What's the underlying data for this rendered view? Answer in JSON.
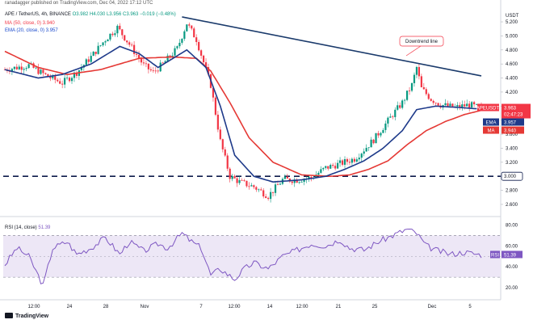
{
  "header": {
    "credit": "ranadagger published on TradingView.com, Dec 04, 2022 17:12 UTC",
    "symbol_line": "APE / TetherUS, 4h, BINANCE",
    "ohlc": "O3.982  H4.030  L3.956  C3.963  −0.019 (−0.48%)",
    "ma_line": "MA (50, close, 0)  3.940",
    "ema_line": "EMA (20, close, 0)  3.957",
    "rsi_label": "RSI (14, close)",
    "rsi_value": "51.39",
    "logo_text": "TradingView"
  },
  "colors": {
    "up": "#089981",
    "down": "#f23645",
    "ema": "#1e3a8a",
    "ma": "#e53935",
    "trendline": "#1a3a6b",
    "rsi": "#7e57c2",
    "rsi_band": "#ede7f6"
  },
  "chart_data": {
    "type": "candlestick",
    "title": "APE / TetherUS, 4h, BINANCE",
    "price_axis": {
      "label": "USDT",
      "ticks": [
        "5.200",
        "5.000",
        "4.800",
        "4.600",
        "4.400",
        "4.200",
        "4.000",
        "3.800",
        "3.600",
        "3.400",
        "3.200",
        "3.000",
        "2.800",
        "2.600"
      ],
      "range": [
        2.45,
        5.35
      ]
    },
    "time_ticks": [
      "12:00",
      "24",
      "28",
      "Nov",
      "7",
      "12:00",
      "14",
      "12:00",
      "21",
      "25",
      "Dec",
      "5"
    ],
    "price_path": [
      [
        0,
        4.52
      ],
      [
        10,
        4.58
      ],
      [
        18,
        4.42
      ],
      [
        24,
        4.33
      ],
      [
        30,
        4.48
      ],
      [
        36,
        4.7
      ],
      [
        42,
        4.95
      ],
      [
        47,
        5.12
      ],
      [
        52,
        4.88
      ],
      [
        58,
        4.58
      ],
      [
        62,
        4.48
      ],
      [
        66,
        4.6
      ],
      [
        72,
        4.82
      ],
      [
        76,
        5.18
      ],
      [
        80,
        4.95
      ],
      [
        86,
        4.3
      ],
      [
        90,
        3.5
      ],
      [
        94,
        3.0
      ],
      [
        98,
        2.92
      ],
      [
        104,
        2.85
      ],
      [
        110,
        2.72
      ],
      [
        116,
        2.95
      ],
      [
        122,
        2.95
      ],
      [
        128,
        2.98
      ],
      [
        134,
        3.12
      ],
      [
        140,
        3.18
      ],
      [
        146,
        3.25
      ],
      [
        150,
        3.38
      ],
      [
        154,
        3.52
      ],
      [
        158,
        3.7
      ],
      [
        162,
        3.88
      ],
      [
        166,
        4.05
      ],
      [
        170,
        4.3
      ],
      [
        172,
        4.55
      ],
      [
        174,
        4.25
      ],
      [
        178,
        4.1
      ],
      [
        182,
        4.02
      ],
      [
        188,
        3.98
      ],
      [
        194,
        4.02
      ],
      [
        199,
        3.963
      ]
    ],
    "series": [
      {
        "name": "EMA (20, close, 0)",
        "last": 3.957,
        "tag": "EMA",
        "tag_value": "3.957",
        "path": [
          [
            0,
            4.52
          ],
          [
            14,
            4.4
          ],
          [
            24,
            4.45
          ],
          [
            36,
            4.6
          ],
          [
            48,
            4.85
          ],
          [
            56,
            4.75
          ],
          [
            64,
            4.55
          ],
          [
            76,
            4.8
          ],
          [
            84,
            4.55
          ],
          [
            90,
            4.0
          ],
          [
            96,
            3.3
          ],
          [
            104,
            3.0
          ],
          [
            112,
            2.92
          ],
          [
            124,
            2.95
          ],
          [
            134,
            3.0
          ],
          [
            142,
            3.1
          ],
          [
            150,
            3.22
          ],
          [
            158,
            3.4
          ],
          [
            166,
            3.65
          ],
          [
            172,
            3.95
          ],
          [
            180,
            4.0
          ],
          [
            190,
            3.98
          ],
          [
            199,
            3.957
          ]
        ]
      },
      {
        "name": "MA (50, close, 0)",
        "last": 3.94,
        "tag": "MA",
        "tag_value": "3.940",
        "path": [
          [
            0,
            4.78
          ],
          [
            14,
            4.55
          ],
          [
            26,
            4.45
          ],
          [
            40,
            4.52
          ],
          [
            56,
            4.68
          ],
          [
            70,
            4.7
          ],
          [
            80,
            4.68
          ],
          [
            86,
            4.5
          ],
          [
            94,
            4.05
          ],
          [
            102,
            3.55
          ],
          [
            112,
            3.2
          ],
          [
            124,
            3.02
          ],
          [
            136,
            3.0
          ],
          [
            144,
            3.02
          ],
          [
            152,
            3.1
          ],
          [
            160,
            3.22
          ],
          [
            168,
            3.45
          ],
          [
            176,
            3.65
          ],
          [
            184,
            3.78
          ],
          [
            192,
            3.88
          ],
          [
            199,
            3.94
          ]
        ]
      }
    ],
    "last_price_tag": {
      "label": "APEUSDT",
      "value": "3.963",
      "countdown": "02:47:23"
    },
    "support": {
      "value": 3.0,
      "label": "3.000"
    },
    "trendline": {
      "from": [
        74,
        5.27
      ],
      "to": [
        199,
        4.43
      ],
      "annotation": "Downtrend line"
    },
    "rsi": {
      "name": "RSI (14, close)",
      "last": 51.39,
      "range": [
        10,
        85
      ],
      "ticks": [
        "80.00",
        "60.00",
        "40.00",
        "20.00"
      ],
      "bands": [
        70,
        30
      ],
      "midline": 50,
      "path": [
        [
          0,
          42
        ],
        [
          5,
          58
        ],
        [
          10,
          50
        ],
        [
          16,
          22
        ],
        [
          20,
          58
        ],
        [
          26,
          64
        ],
        [
          30,
          52
        ],
        [
          36,
          58
        ],
        [
          42,
          68
        ],
        [
          48,
          52
        ],
        [
          52,
          64
        ],
        [
          58,
          55
        ],
        [
          64,
          62
        ],
        [
          68,
          58
        ],
        [
          74,
          72
        ],
        [
          78,
          64
        ],
        [
          82,
          58
        ],
        [
          86,
          32
        ],
        [
          90,
          38
        ],
        [
          96,
          28
        ],
        [
          100,
          38
        ],
        [
          104,
          44
        ],
        [
          110,
          38
        ],
        [
          116,
          50
        ],
        [
          122,
          56
        ],
        [
          128,
          62
        ],
        [
          134,
          60
        ],
        [
          140,
          66
        ],
        [
          144,
          58
        ],
        [
          150,
          56
        ],
        [
          156,
          64
        ],
        [
          160,
          68
        ],
        [
          164,
          72
        ],
        [
          168,
          76
        ],
        [
          172,
          72
        ],
        [
          176,
          60
        ],
        [
          180,
          56
        ],
        [
          186,
          52
        ],
        [
          192,
          54
        ],
        [
          199,
          51.39
        ]
      ]
    }
  }
}
